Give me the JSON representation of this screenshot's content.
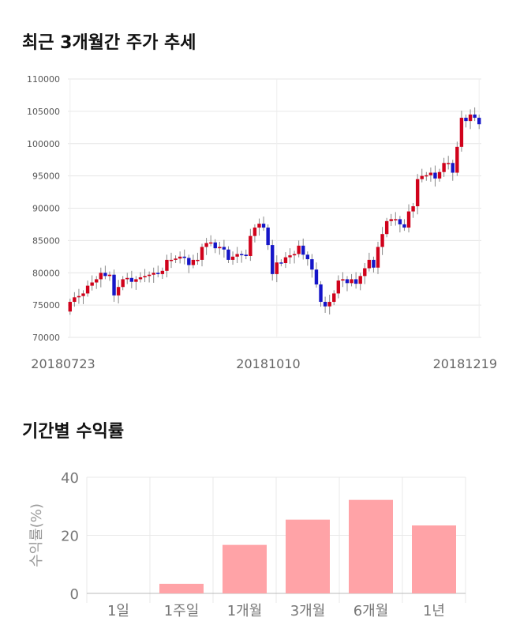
{
  "price_section": {
    "title": "최근 3개월간 주가 추세"
  },
  "return_section": {
    "title": "기간별 수익률"
  },
  "chart_data": [
    {
      "type": "candlestick",
      "title": "최근 3개월간 주가 추세",
      "ylim": [
        70000,
        110000
      ],
      "yticks": [
        70000,
        75000,
        80000,
        85000,
        90000,
        95000,
        100000,
        105000,
        110000
      ],
      "xtick_labels": [
        "20180723",
        "20181010",
        "20181219"
      ],
      "grid": true,
      "up_color": "#d0021b",
      "down_color": "#1515c8",
      "close": [
        75500,
        76200,
        76400,
        76800,
        78000,
        78500,
        79000,
        80000,
        79500,
        79700,
        76500,
        77800,
        79000,
        79200,
        78600,
        79000,
        79300,
        79500,
        79700,
        80000,
        79800,
        80300,
        82000,
        82000,
        82200,
        82500,
        82300,
        81200,
        82000,
        82000,
        84000,
        84600,
        84700,
        83800,
        84000,
        83600,
        82000,
        82500,
        82900,
        82800,
        82600,
        85700,
        87000,
        87600,
        87000,
        84300,
        79800,
        81600,
        81500,
        82400,
        82700,
        82900,
        84200,
        82800,
        82100,
        80500,
        78200,
        75500,
        74800,
        75500,
        76800,
        78800,
        79000,
        78400,
        79000,
        78300,
        79500,
        80700,
        82000,
        80800,
        84000,
        86000,
        88000,
        88300,
        88300,
        87500,
        87000,
        89500,
        90300,
        94500,
        95000,
        95100,
        95500,
        94600,
        95600,
        97000,
        97000,
        95500,
        99500,
        104000,
        103500,
        104500,
        104000,
        103000
      ],
      "open_first": 74000
    },
    {
      "type": "bar",
      "title": "기간별 수익률",
      "ylabel": "수익률(%)",
      "ylim": [
        0,
        40
      ],
      "yticks": [
        0,
        20,
        40
      ],
      "categories": [
        "1일",
        "1주일",
        "1개월",
        "3개월",
        "6개월",
        "1년"
      ],
      "values": [
        0,
        3.3,
        16.7,
        25.4,
        32.2,
        23.4
      ],
      "bar_color": "#ffa3a7",
      "grid": true
    }
  ]
}
